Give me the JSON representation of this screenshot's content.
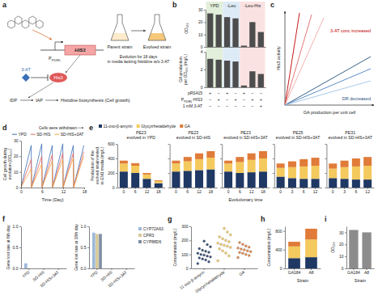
{
  "panel_labels": [
    "a",
    "b",
    "c",
    "d",
    "e",
    "f",
    "g",
    "h",
    "i"
  ],
  "diagram_a": {
    "promoter": "P",
    "promoter_sub": "PDR5",
    "gene": "HIS3",
    "inhibitor": "3-AT",
    "enzyme": "His3",
    "pathway": [
      "IDP",
      "IAP",
      "Histidine biosynthesis (Cell growth)"
    ],
    "parent": "Parent strain",
    "evolved": "Evolved strain",
    "evolution": [
      "Evolution for 18 days",
      "in media lacking histidine w/o 3-AT"
    ]
  },
  "diagram_c": {
    "y_label": "His3 activity",
    "x_label": "GA production per unit cell",
    "red_note": "3-AT conc increased",
    "blue_note": "DR decreased"
  },
  "chart_data": [
    {
      "type": "bar",
      "y_label": "OD₆₀₀",
      "categories": [
        null,
        null,
        null,
        null,
        null,
        null,
        null
      ],
      "values": [
        27,
        26,
        24,
        23,
        1,
        20,
        12
      ],
      "color": "#4d4d4d",
      "ylim": [
        0,
        30
      ],
      "yticks": [
        0,
        10,
        20,
        30
      ],
      "groups": [
        {
          "label": "YPD",
          "bars": [
            0,
            1
          ]
        },
        {
          "label": "-Leu",
          "bars": [
            2,
            3
          ]
        },
        {
          "label": "-Leu-His",
          "bars": [
            4,
            5,
            6
          ]
        }
      ]
    },
    {
      "type": "bar",
      "y_label": [
        "GA production",
        "per OD₆₀₀ (mg/L)"
      ],
      "categories": [
        null,
        null,
        null,
        null,
        null,
        null,
        null
      ],
      "values": [
        3.2,
        3.1,
        3.0,
        2.9,
        0.2,
        1.8,
        1.5
      ],
      "color": "#4d4d4d",
      "ylim": [
        0,
        4
      ],
      "yticks": [
        0,
        2,
        4
      ],
      "conditions": [
        {
          "label": "pRS415",
          "values": [
            "+",
            "−",
            "+",
            "−",
            "+",
            "−",
            "−"
          ]
        },
        {
          "label": "P",
          "label_sub": "PDR5",
          "label_rest": "-HIS3",
          "values": [
            "−",
            "+",
            "−",
            "+",
            "−",
            "+",
            "+"
          ]
        },
        {
          "label": "1 mM 3-AT",
          "values": [
            "−",
            "−",
            "−",
            "−",
            "−",
            "−",
            "+"
          ]
        }
      ]
    },
    {
      "type": "line",
      "y_label": [
        "Cell growth during",
        "evolution (OD₆₀₀)"
      ],
      "x_label": "Time (Day)",
      "annotation": "Cells were withdrawn",
      "x": [
        0,
        2.9,
        3,
        5.9,
        6,
        8.9,
        9,
        11.9,
        12,
        14.9,
        15,
        17.9
      ],
      "series": [
        {
          "name": "YPD",
          "color": "#3b6fb6",
          "values": [
            0.3,
            27,
            0.3,
            28,
            0.3,
            27,
            0.3,
            28,
            0.3,
            27,
            0.3,
            27
          ]
        },
        {
          "name": "SD-HIS",
          "color": "#e06666",
          "values": [
            0.2,
            18,
            0.2,
            20,
            0.2,
            21,
            0.2,
            22,
            0.2,
            22,
            0.2,
            23
          ]
        },
        {
          "name": "SD-HIS+3AT",
          "color": "#f2a541",
          "values": [
            0.2,
            12,
            0.2,
            15,
            0.2,
            17,
            0.2,
            18,
            0.2,
            19,
            0.2,
            20
          ]
        }
      ],
      "xlim": [
        0,
        18
      ],
      "xticks": [
        0,
        6,
        12,
        18
      ],
      "ylim": [
        0,
        30
      ],
      "yticks": [
        0,
        10,
        20,
        30
      ],
      "legend": "top"
    },
    {
      "type": "bar",
      "stacked": true,
      "title": [
        "PE23",
        "evolved in YPD"
      ],
      "y_label": [
        "Production of the",
        "evolved strain tested",
        "in GM1 media (mg/L)"
      ],
      "categories": [
        "0",
        "6",
        "12",
        "18"
      ],
      "series": [
        {
          "name": "11-oxo-β-amyrin",
          "color": "#1f3864",
          "values": [
            220,
            200,
            120,
            60
          ]
        },
        {
          "name": "Glycyrrhetaldehyde",
          "color": "#f4c95d",
          "values": [
            110,
            100,
            60,
            30
          ]
        },
        {
          "name": "GA",
          "color": "#e07b39",
          "values": [
            40,
            35,
            20,
            10
          ]
        }
      ],
      "ylim": [
        0,
        600
      ],
      "yticks": [
        0,
        200,
        400,
        600
      ],
      "legend": "top"
    },
    {
      "type": "bar",
      "stacked": true,
      "title": [
        "PE23",
        "evolved in SD-HIS"
      ],
      "categories": [
        "0",
        "6",
        "12",
        "18"
      ],
      "series": [
        {
          "color": "#1f3864",
          "values": [
            220,
            230,
            240,
            250
          ]
        },
        {
          "color": "#f4c95d",
          "values": [
            110,
            130,
            150,
            160
          ]
        },
        {
          "color": "#e07b39",
          "values": [
            40,
            60,
            80,
            90
          ]
        }
      ],
      "ylim": [
        0,
        600
      ],
      "yticks": [
        0,
        200,
        400,
        600
      ],
      "tick_labels": "x"
    },
    {
      "type": "bar",
      "stacked": true,
      "title": [
        "PE23",
        "evolved in SD-HIS+3AT"
      ],
      "x_label": "Evolutionary time",
      "categories": [
        "0",
        "6",
        "12",
        "18"
      ],
      "series": [
        {
          "color": "#1f3864",
          "values": [
            220,
            200,
            210,
            220
          ]
        },
        {
          "color": "#f4c95d",
          "values": [
            110,
            150,
            170,
            180
          ]
        },
        {
          "color": "#e07b39",
          "values": [
            40,
            70,
            90,
            100
          ]
        }
      ],
      "ylim": [
        0,
        600
      ],
      "yticks": [
        0,
        200,
        400,
        600
      ],
      "tick_labels": "x"
    },
    {
      "type": "bar",
      "stacked": true,
      "title": [
        "PE25",
        "evolved in SD-HIS+3AT"
      ],
      "categories": [
        "0",
        "3",
        "6",
        "12"
      ],
      "series": [
        {
          "color": "#1f3864",
          "values": [
            150,
            130,
            120,
            120
          ]
        },
        {
          "color": "#f4c95d",
          "values": [
            120,
            150,
            170,
            180
          ]
        },
        {
          "color": "#e07b39",
          "values": [
            60,
            80,
            100,
            110
          ]
        }
      ],
      "ylim": [
        0,
        600
      ],
      "yticks": [
        0,
        200,
        400,
        600
      ],
      "tick_labels": "x"
    },
    {
      "type": "bar",
      "stacked": true,
      "title": [
        "PE31",
        "evolved in SD-HIS+3AT"
      ],
      "categories": [
        "0",
        "3",
        "6",
        "12"
      ],
      "series": [
        {
          "color": "#1f3864",
          "values": [
            130,
            120,
            110,
            110
          ]
        },
        {
          "color": "#f4c95d",
          "values": [
            130,
            160,
            180,
            190
          ]
        },
        {
          "color": "#e07b39",
          "values": [
            70,
            90,
            110,
            120
          ]
        }
      ],
      "ylim": [
        0,
        600
      ],
      "yticks": [
        0,
        200,
        400,
        600
      ],
      "tick_labels": "x"
    },
    {
      "type": "bar",
      "y_label": "Gene lost rate at 6th day",
      "categories": [
        "YPD",
        "SD-HIS",
        "SD-HIS+3AT"
      ],
      "series": [
        {
          "color": "#9db9d9",
          "values": [
            0.12,
            0,
            0
          ]
        },
        {
          "color": "#d8c99b",
          "values": [
            0,
            0,
            0
          ]
        },
        {
          "color": "#7f8fa6",
          "values": [
            0,
            0,
            0
          ]
        }
      ],
      "ylim": [
        0,
        1
      ],
      "yticks": [
        {
          "value": 0,
          "label": "0.0"
        },
        0.5,
        {
          "value": 1,
          "label": "1.0"
        }
      ]
    },
    {
      "type": "bar",
      "y_label": "Gene lost rate at 18th day",
      "categories": [
        "YPD",
        "SD-HIS",
        "SD-HIS+3AT"
      ],
      "series": [
        {
          "name": "CYP72A63",
          "color": "#9db9d9",
          "values": [
            0.85,
            0,
            0
          ]
        },
        {
          "name": "CPR3",
          "color": "#d8c99b",
          "values": [
            0.82,
            0,
            0
          ]
        },
        {
          "name": "CYP88D6",
          "color": "#7f8fa6",
          "values": [
            0.82,
            0,
            0
          ]
        }
      ],
      "ylim": [
        0,
        1
      ],
      "yticks": [
        {
          "value": 0,
          "label": "0.0"
        },
        0.5,
        {
          "value": 1,
          "label": "1.0"
        }
      ],
      "legend": "right"
    },
    {
      "type": "strip",
      "y_label": "Concentration (mg/L)",
      "categories": [
        "11-oxo-β-amyrin",
        "Glycyrrhetaldehyde",
        "GA"
      ],
      "colors": [
        "#1f3864",
        "#f4c95d",
        "#e07b39"
      ],
      "values": [
        [
          35,
          48,
          60,
          68,
          75,
          82,
          88,
          95,
          100,
          108,
          115,
          122,
          130,
          142,
          155,
          170,
          195
        ],
        [
          55,
          90,
          110,
          125,
          140,
          150,
          158,
          165,
          172,
          180,
          190,
          200,
          212,
          225,
          240,
          260,
          285
        ],
        [
          78,
          92,
          100,
          108,
          114,
          120,
          126,
          132,
          138,
          145,
          152,
          160,
          172,
          185
        ]
      ],
      "ylim": [
        0,
        300
      ],
      "yticks": [
        0,
        100,
        200,
        300
      ]
    },
    {
      "type": "bar",
      "stacked": true,
      "y_label": "Concentration (mg/L)",
      "x_label": "Strain",
      "categories": [
        "GA184",
        "A8"
      ],
      "series": [
        {
          "color": "#1f3864",
          "values": [
            220,
            240
          ]
        },
        {
          "color": "#f4c95d",
          "values": [
            250,
            380
          ]
        },
        {
          "color": "#e07b39",
          "values": [
            100,
            230
          ]
        }
      ],
      "ylim": [
        0,
        900
      ],
      "yticks": [
        0,
        400,
        800
      ]
    },
    {
      "type": "bar",
      "y_label": "OD₆₀₀",
      "x_label": "Strain",
      "categories": [
        "GA184",
        "A8"
      ],
      "values": [
        32,
        30
      ],
      "color": "#8c8c8c",
      "ylim": [
        0,
        35
      ],
      "yticks": [
        0,
        10,
        20,
        30
      ]
    }
  ]
}
